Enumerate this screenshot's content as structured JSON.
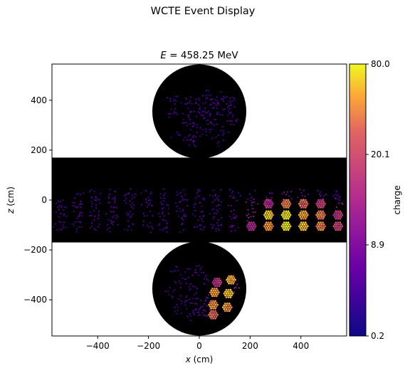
{
  "figure": {
    "suptitle": "WCTE Event Display"
  },
  "chart_data": {
    "type": "scatter",
    "title": "E = 458.25 MeV",
    "title_prefix": "E",
    "title_value": "= 458.25 MeV",
    "xlabel": "x (cm)",
    "xlabel_var": "x",
    "xlabel_unit": " (cm)",
    "ylabel": "z (cm)",
    "ylabel_var": "z",
    "ylabel_unit": " (cm)",
    "xlim": [
      -580,
      580
    ],
    "ylim": [
      -545,
      545
    ],
    "xticks": [
      -400,
      -200,
      0,
      200,
      400
    ],
    "xtick_labels": [
      "−400",
      "−200",
      "0",
      "200",
      "400"
    ],
    "yticks": [
      400,
      200,
      0,
      -200,
      -400
    ],
    "ytick_labels": [
      "400",
      "200",
      "0",
      "−200",
      "−400"
    ],
    "grid": false,
    "background_color": "#000000",
    "geometry": {
      "barrel": {
        "x_min": -580,
        "x_max": 580,
        "z_min": -170,
        "z_max": 170
      },
      "top_cap": {
        "cx": 0,
        "cz": 355,
        "r": 185
      },
      "bottom_cap": {
        "cx": 0,
        "cz": -355,
        "r": 185
      }
    },
    "colorbar": {
      "label": "charge",
      "colormap": "plasma",
      "scale": "nonlinear",
      "range": [
        0.2,
        80.0
      ],
      "ticks": [
        80.0,
        20.1,
        8.9,
        0.2
      ],
      "tick_labels": [
        "80.0",
        "20.1",
        "8.9",
        "0.2"
      ]
    },
    "series": [
      {
        "name": "barrel_mpmt_clusters",
        "columns": [
          "x",
          "z",
          "mean_charge"
        ],
        "points": [
          [
            -546,
            -15,
            0.5
          ],
          [
            -546,
            -60,
            0.6
          ],
          [
            -546,
            -105,
            0.6
          ],
          [
            -478,
            20,
            0.5
          ],
          [
            -478,
            -15,
            0.6
          ],
          [
            -478,
            -60,
            0.6
          ],
          [
            -478,
            -105,
            0.5
          ],
          [
            -410,
            20,
            0.6
          ],
          [
            -410,
            -15,
            0.5
          ],
          [
            -410,
            -60,
            0.6
          ],
          [
            -410,
            -105,
            0.6
          ],
          [
            -342,
            20,
            0.5
          ],
          [
            -342,
            -15,
            0.6
          ],
          [
            -342,
            -60,
            0.6
          ],
          [
            -342,
            -105,
            0.5
          ],
          [
            -273,
            20,
            0.6
          ],
          [
            -273,
            -15,
            0.6
          ],
          [
            -273,
            -60,
            0.5
          ],
          [
            -273,
            -105,
            0.5
          ],
          [
            -205,
            20,
            0.5
          ],
          [
            -205,
            -15,
            0.6
          ],
          [
            -205,
            -60,
            0.6
          ],
          [
            -205,
            -105,
            0.6
          ],
          [
            -137,
            20,
            0.6
          ],
          [
            -137,
            -15,
            0.5
          ],
          [
            -137,
            -60,
            0.6
          ],
          [
            -137,
            -105,
            0.5
          ],
          [
            -68,
            20,
            0.5
          ],
          [
            -68,
            -15,
            0.6
          ],
          [
            -68,
            -60,
            0.5
          ],
          [
            -68,
            -105,
            0.6
          ],
          [
            0,
            20,
            0.5
          ],
          [
            0,
            -15,
            0.6
          ],
          [
            0,
            -60,
            0.6
          ],
          [
            0,
            -105,
            0.5
          ],
          [
            68,
            20,
            0.6
          ],
          [
            68,
            -15,
            0.6
          ],
          [
            68,
            -60,
            0.5
          ],
          [
            68,
            -105,
            0.6
          ],
          [
            137,
            20,
            0.6
          ],
          [
            137,
            -15,
            0.7
          ],
          [
            137,
            -60,
            0.7
          ],
          [
            137,
            -105,
            0.8
          ],
          [
            205,
            20,
            0.7
          ],
          [
            205,
            -15,
            1.5
          ],
          [
            205,
            -60,
            2.5
          ],
          [
            205,
            -105,
            4
          ],
          [
            273,
            20,
            1.0
          ],
          [
            273,
            -15,
            5
          ],
          [
            273,
            -60,
            60
          ],
          [
            273,
            -105,
            30
          ],
          [
            342,
            20,
            1.2
          ],
          [
            342,
            -15,
            25
          ],
          [
            342,
            -60,
            80
          ],
          [
            342,
            -105,
            75
          ],
          [
            410,
            20,
            1.0
          ],
          [
            410,
            -15,
            20
          ],
          [
            410,
            -60,
            40
          ],
          [
            410,
            -105,
            50
          ],
          [
            478,
            20,
            0.8
          ],
          [
            478,
            -15,
            8
          ],
          [
            478,
            -60,
            25
          ],
          [
            478,
            -105,
            30
          ],
          [
            546,
            20,
            0.6
          ],
          [
            546,
            -15,
            2
          ],
          [
            546,
            -60,
            6
          ],
          [
            546,
            -105,
            8
          ]
        ]
      },
      {
        "name": "top_cap_mpmt_clusters",
        "columns": [
          "x",
          "z",
          "mean_charge"
        ],
        "points": [
          [
            -70,
            330,
            0.5
          ],
          [
            -110,
            350,
            0.5
          ],
          [
            -50,
            390,
            0.5
          ],
          [
            0,
            400,
            0.6
          ],
          [
            40,
            415,
            0.5
          ],
          [
            -30,
            345,
            0.6
          ],
          [
            10,
            360,
            0.5
          ],
          [
            -60,
            305,
            0.6
          ],
          [
            -20,
            295,
            0.5
          ],
          [
            30,
            340,
            0.5
          ],
          [
            60,
            380,
            0.6
          ],
          [
            90,
            410,
            0.5
          ],
          [
            110,
            355,
            0.5
          ],
          [
            80,
            335,
            0.6
          ],
          [
            130,
            320,
            0.5
          ],
          [
            -90,
            265,
            0.5
          ],
          [
            -40,
            255,
            0.6
          ],
          [
            10,
            270,
            0.5
          ],
          [
            50,
            290,
            0.6
          ],
          [
            90,
            270,
            0.5
          ],
          [
            70,
            235,
            0.5
          ],
          [
            -30,
            230,
            0.6
          ],
          [
            130,
            390,
            0.5
          ],
          [
            -100,
            410,
            0.5
          ]
        ]
      },
      {
        "name": "bottom_cap_mpmt_clusters",
        "columns": [
          "x",
          "z",
          "mean_charge"
        ],
        "points": [
          [
            -90,
            -280,
            0.5
          ],
          [
            -40,
            -300,
            0.5
          ],
          [
            0,
            -280,
            0.6
          ],
          [
            20,
            -325,
            0.6
          ],
          [
            -70,
            -330,
            0.5
          ],
          [
            -30,
            -360,
            0.5
          ],
          [
            -110,
            -370,
            0.5
          ],
          [
            -60,
            -400,
            0.5
          ],
          [
            -20,
            -410,
            0.6
          ],
          [
            -80,
            -440,
            0.5
          ],
          [
            -40,
            -460,
            0.5
          ],
          [
            0,
            -450,
            0.6
          ],
          [
            10,
            -420,
            0.7
          ],
          [
            40,
            -460,
            0.9
          ],
          [
            40,
            -395,
            1.0
          ],
          [
            70,
            -330,
            6
          ],
          [
            125,
            -320,
            40
          ],
          [
            60,
            -370,
            40
          ],
          [
            115,
            -375,
            50
          ],
          [
            55,
            -420,
            30
          ],
          [
            110,
            -430,
            35
          ],
          [
            55,
            -460,
            20
          ],
          [
            140,
            -350,
            3
          ]
        ]
      }
    ]
  }
}
